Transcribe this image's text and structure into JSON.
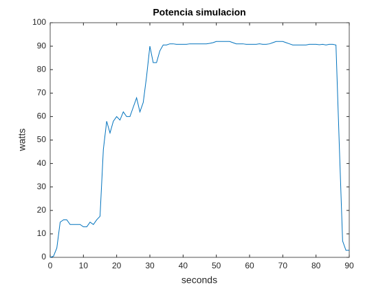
{
  "chart_data": {
    "type": "line",
    "title": "Potencia simulacion",
    "x_label": "seconds",
    "y_label": "watts",
    "x": [
      0,
      1,
      2,
      3,
      4,
      5,
      6,
      7,
      8,
      9,
      10,
      11,
      12,
      13,
      14,
      15,
      16,
      17,
      18,
      19,
      20,
      21,
      22,
      23,
      24,
      25,
      26,
      27,
      28,
      29,
      30,
      31,
      32,
      33,
      34,
      35,
      36,
      37,
      38,
      39,
      40,
      41,
      42,
      43,
      44,
      45,
      46,
      47,
      48,
      49,
      50,
      51,
      52,
      53,
      54,
      55,
      56,
      57,
      58,
      59,
      60,
      61,
      62,
      63,
      64,
      65,
      66,
      67,
      68,
      69,
      70,
      71,
      72,
      73,
      74,
      75,
      76,
      77,
      78,
      79,
      80,
      81,
      82,
      83,
      84,
      85,
      86,
      87,
      88,
      89,
      90
    ],
    "series": [
      {
        "name": "watts",
        "color": "#0072bd",
        "values": [
          0,
          0.5,
          4,
          15,
          16,
          16,
          14,
          14,
          14,
          14,
          13,
          13,
          15,
          14,
          16,
          17.5,
          46,
          58,
          53,
          58,
          60,
          58.5,
          62,
          60,
          60,
          64,
          68,
          62,
          66,
          77,
          90,
          83,
          83,
          88,
          90.5,
          90.5,
          91,
          91,
          90.8,
          90.8,
          90.8,
          90.8,
          91,
          91,
          91,
          91,
          91,
          91,
          91.2,
          91.5,
          92,
          92,
          92,
          92,
          92,
          91.5,
          91,
          91,
          91,
          90.8,
          90.8,
          90.8,
          90.8,
          91,
          90.8,
          90.8,
          91,
          91.5,
          92,
          92,
          92,
          91.5,
          91,
          90.5,
          90.5,
          90.5,
          90.5,
          90.5,
          90.8,
          90.8,
          90.8,
          90.6,
          90.8,
          90.5,
          90.8,
          90.8,
          90.5,
          48,
          7,
          3,
          3
        ]
      }
    ],
    "xlim": [
      0,
      90
    ],
    "ylim": [
      0,
      100
    ],
    "xticks": [
      0,
      10,
      20,
      30,
      40,
      50,
      60,
      70,
      80,
      90
    ],
    "yticks": [
      0,
      10,
      20,
      30,
      40,
      50,
      60,
      70,
      80,
      90,
      100
    ],
    "grid": false
  }
}
